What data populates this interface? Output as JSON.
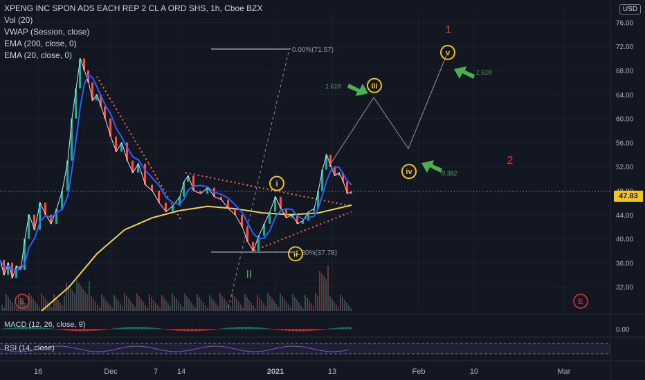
{
  "header": {
    "symbol_title": "XPENG INC SPON ADS EACH REP 2 CL A ORD SHS, 1h, Cboe BZX",
    "indicators": [
      "Vol (20)",
      "VWAP (Session, close)",
      "EMA (200, close, 0)",
      "EMA (20, close, 0)"
    ],
    "currency": "USD"
  },
  "colors": {
    "background": "#131722",
    "ema200": "#f5d547",
    "ema20": "#2962ff",
    "bull_candle": "#26a69a",
    "bear_candle": "#ef5350",
    "annotation_red": "#e53935",
    "annotation_green": "#4caf50",
    "circle_yellow": "#f5c518",
    "dotted_orange": "#ff7043"
  },
  "chart_data": {
    "type": "line",
    "title": "XPENG INC SPON ADS EACH REP 2 CL A ORD SHS, 1h, Cboe BZX",
    "x_tick_labels": [
      "16",
      "Dec",
      "7",
      "14",
      "2021",
      "13",
      "Feb",
      "10",
      "Mar"
    ],
    "y_tick_labels": [
      "76.00",
      "72.00",
      "68.00",
      "64.00",
      "60.00",
      "56.00",
      "52.00",
      "48.00",
      "44.00",
      "40.00",
      "36.00",
      "32.00"
    ],
    "ylim": [
      28,
      78
    ],
    "last_price": "47.83",
    "price_series": [
      {
        "t": 0,
        "v": 36.5
      },
      {
        "t": 6,
        "v": 34.0
      },
      {
        "t": 12,
        "v": 36.0
      },
      {
        "t": 18,
        "v": 33.5
      },
      {
        "t": 24,
        "v": 35.5
      },
      {
        "t": 30,
        "v": 34.8
      },
      {
        "t": 36,
        "v": 40.0
      },
      {
        "t": 42,
        "v": 44.0
      },
      {
        "t": 50,
        "v": 41.5
      },
      {
        "t": 58,
        "v": 46.0
      },
      {
        "t": 66,
        "v": 44.0
      },
      {
        "t": 74,
        "v": 42.5
      },
      {
        "t": 82,
        "v": 45.0
      },
      {
        "t": 90,
        "v": 48.0
      },
      {
        "t": 98,
        "v": 53.0
      },
      {
        "t": 104,
        "v": 60.0
      },
      {
        "t": 110,
        "v": 65.0
      },
      {
        "t": 116,
        "v": 70.0
      },
      {
        "t": 122,
        "v": 68.0
      },
      {
        "t": 128,
        "v": 66.0
      },
      {
        "t": 134,
        "v": 63.0
      },
      {
        "t": 140,
        "v": 64.0
      },
      {
        "t": 146,
        "v": 62.0
      },
      {
        "t": 152,
        "v": 60.0
      },
      {
        "t": 160,
        "v": 57.0
      },
      {
        "t": 168,
        "v": 54.5
      },
      {
        "t": 176,
        "v": 56.0
      },
      {
        "t": 184,
        "v": 53.0
      },
      {
        "t": 192,
        "v": 51.0
      },
      {
        "t": 200,
        "v": 52.5
      },
      {
        "t": 210,
        "v": 49.0
      },
      {
        "t": 220,
        "v": 48.0
      },
      {
        "t": 230,
        "v": 46.0
      },
      {
        "t": 240,
        "v": 44.5
      },
      {
        "t": 250,
        "v": 45.5
      },
      {
        "t": 260,
        "v": 47.0
      },
      {
        "t": 266,
        "v": 49.5
      },
      {
        "t": 272,
        "v": 50.5
      },
      {
        "t": 280,
        "v": 48.0
      },
      {
        "t": 290,
        "v": 47.5
      },
      {
        "t": 300,
        "v": 48.5
      },
      {
        "t": 310,
        "v": 47.0
      },
      {
        "t": 320,
        "v": 46.5
      },
      {
        "t": 330,
        "v": 45.0
      },
      {
        "t": 340,
        "v": 44.0
      },
      {
        "t": 350,
        "v": 42.0
      },
      {
        "t": 358,
        "v": 39.5
      },
      {
        "t": 366,
        "v": 38.0
      },
      {
        "t": 374,
        "v": 40.5
      },
      {
        "t": 382,
        "v": 42.5
      },
      {
        "t": 390,
        "v": 44.5
      },
      {
        "t": 398,
        "v": 47.0
      },
      {
        "t": 406,
        "v": 45.0
      },
      {
        "t": 414,
        "v": 43.5
      },
      {
        "t": 422,
        "v": 44.0
      },
      {
        "t": 430,
        "v": 42.5
      },
      {
        "t": 438,
        "v": 43.0
      },
      {
        "t": 446,
        "v": 44.5
      },
      {
        "t": 454,
        "v": 45.0
      },
      {
        "t": 460,
        "v": 48.0
      },
      {
        "t": 466,
        "v": 51.5
      },
      {
        "t": 472,
        "v": 54.0
      },
      {
        "t": 478,
        "v": 52.0
      },
      {
        "t": 484,
        "v": 50.5
      },
      {
        "t": 490,
        "v": 51.0
      },
      {
        "t": 496,
        "v": 49.5
      },
      {
        "t": 502,
        "v": 47.5
      },
      {
        "t": 508,
        "v": 47.83
      }
    ],
    "ema200_series": [
      {
        "t": 60,
        "v": 28.0
      },
      {
        "t": 100,
        "v": 32.0
      },
      {
        "t": 140,
        "v": 37.5
      },
      {
        "t": 180,
        "v": 41.5
      },
      {
        "t": 220,
        "v": 43.5
      },
      {
        "t": 260,
        "v": 44.7
      },
      {
        "t": 300,
        "v": 45.4
      },
      {
        "t": 340,
        "v": 45.0
      },
      {
        "t": 380,
        "v": 44.3
      },
      {
        "t": 420,
        "v": 44.0
      },
      {
        "t": 460,
        "v": 44.3
      },
      {
        "t": 508,
        "v": 45.6
      }
    ],
    "fib_labels": [
      {
        "text": "0.00%(71.57)",
        "value": 71.57
      },
      {
        "text": "1.80%(37.78)",
        "value": 37.78
      }
    ],
    "wave_labels": [
      {
        "text": "i",
        "value": 49.2
      },
      {
        "text": "ii",
        "value": 37.5
      },
      {
        "text": "iii",
        "value": 65.5
      },
      {
        "text": "iv",
        "value": 51.2
      },
      {
        "text": "v",
        "value": 71.0
      }
    ],
    "projection_path": [
      {
        "t": 475,
        "v": 52.0
      },
      {
        "t": 540,
        "v": 63.5
      },
      {
        "t": 590,
        "v": 55.0
      },
      {
        "t": 645,
        "v": 70.5
      }
    ],
    "ratio_labels": [
      "1.618",
      "1.618",
      "0.382"
    ],
    "count_labels": [
      "1",
      "2",
      "II"
    ],
    "event_marker": "E",
    "subpanes": [
      {
        "name": "MACD (12, 26, close, 9)",
        "tick": "0.00"
      },
      {
        "name": "RSI (14, close)"
      }
    ]
  }
}
